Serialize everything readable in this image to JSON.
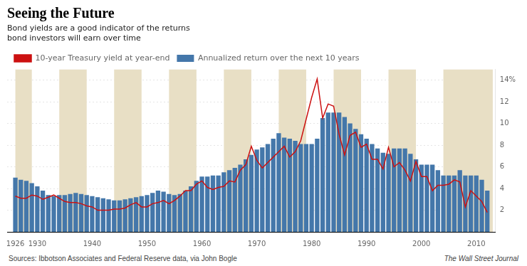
{
  "chart_data": {
    "type": "bar",
    "title": "Seeing the Future",
    "subtitle": "Bond yields are a good indicator of the returns\nbond investors will earn over time",
    "x": [
      1926,
      1927,
      1928,
      1929,
      1930,
      1931,
      1932,
      1933,
      1934,
      1935,
      1936,
      1937,
      1938,
      1939,
      1940,
      1941,
      1942,
      1943,
      1944,
      1945,
      1946,
      1947,
      1948,
      1949,
      1950,
      1951,
      1952,
      1953,
      1954,
      1955,
      1956,
      1957,
      1958,
      1959,
      1960,
      1961,
      1962,
      1963,
      1964,
      1965,
      1966,
      1967,
      1968,
      1969,
      1970,
      1971,
      1972,
      1973,
      1974,
      1975,
      1976,
      1977,
      1978,
      1979,
      1980,
      1981,
      1982,
      1983,
      1984,
      1985,
      1986,
      1987,
      1988,
      1989,
      1990,
      1991,
      1992,
      1993,
      1994,
      1995,
      1996,
      1997,
      1998,
      1999,
      2000,
      2001,
      2002,
      2003,
      2004,
      2005,
      2006,
      2007,
      2008,
      2009,
      2010,
      2011,
      2012
    ],
    "series": [
      {
        "name": "10-year Treasury yield at year-end",
        "type": "line",
        "color": "#cc1111",
        "values": [
          3.3,
          3.1,
          3.1,
          3.4,
          3.3,
          3.0,
          3.2,
          3.4,
          3.1,
          2.8,
          2.7,
          2.7,
          2.6,
          2.4,
          2.3,
          2.0,
          2.0,
          2.0,
          2.1,
          2.1,
          2.2,
          2.5,
          2.7,
          2.3,
          2.3,
          2.6,
          2.7,
          2.9,
          2.6,
          2.9,
          3.3,
          3.8,
          3.8,
          4.4,
          4.7,
          4.1,
          3.9,
          4.1,
          4.2,
          4.7,
          4.6,
          5.7,
          6.2,
          7.9,
          6.6,
          5.9,
          6.4,
          6.9,
          7.4,
          7.9,
          6.9,
          7.4,
          8.4,
          10.4,
          12.4,
          14.1,
          10.5,
          11.8,
          11.6,
          9.0,
          7.1,
          8.9,
          9.2,
          7.8,
          8.1,
          6.7,
          6.7,
          5.8,
          7.8,
          6.0,
          6.4,
          5.7,
          4.7,
          6.5,
          5.1,
          5.1,
          3.8,
          4.3,
          4.3,
          4.4,
          4.8,
          4.6,
          2.3,
          3.8,
          3.3,
          2.8,
          1.8
        ]
      },
      {
        "name": "Annualized return over the next 10 years",
        "type": "bar",
        "color": "#4477aa",
        "values": [
          5.0,
          4.8,
          4.7,
          4.5,
          4.2,
          3.8,
          3.4,
          3.3,
          3.4,
          3.4,
          3.5,
          3.6,
          3.5,
          3.4,
          3.3,
          3.2,
          3.1,
          3.0,
          2.9,
          2.9,
          3.0,
          3.1,
          3.2,
          3.3,
          3.4,
          3.6,
          3.8,
          3.7,
          3.5,
          3.4,
          3.5,
          3.8,
          4.2,
          4.7,
          5.1,
          5.1,
          5.2,
          5.2,
          5.5,
          5.7,
          5.9,
          6.2,
          6.7,
          7.1,
          7.6,
          7.8,
          8.1,
          8.6,
          9.1,
          8.7,
          8.6,
          8.4,
          8.1,
          8.1,
          8.1,
          8.6,
          10.5,
          11.0,
          11.0,
          11.0,
          10.6,
          10.0,
          9.5,
          9.0,
          8.6,
          8.1,
          7.7,
          7.3,
          7.2,
          7.7,
          7.7,
          7.7,
          7.2,
          6.7,
          6.2,
          6.2,
          6.2,
          5.7,
          5.2,
          5.2,
          5.2,
          5.7,
          5.2,
          5.2,
          5.2,
          4.8,
          3.8
        ]
      }
    ],
    "xlim": [
      1924.5,
      2013.5
    ],
    "xticks": [
      1926,
      1930,
      1940,
      1950,
      1960,
      1970,
      1980,
      1990,
      2000,
      2010
    ],
    "ylim": [
      0,
      15
    ],
    "yticks": [
      2,
      4,
      6,
      8,
      10,
      12,
      {
        "value": 14,
        "label": "14%"
      }
    ],
    "grid": "y",
    "bands": {
      "color": "#e8dfc5",
      "ranges": [
        [
          1926,
          1929
        ],
        [
          1934,
          1939
        ],
        [
          1944,
          1949
        ],
        [
          1954,
          1959
        ],
        [
          1964,
          1969
        ],
        [
          1974,
          1979
        ],
        [
          1984,
          1989
        ],
        [
          1994,
          1999
        ],
        [
          2004,
          2013
        ]
      ]
    },
    "source": "Sources: Ibbotson Associates and Federal Reserve data, via John Bogle",
    "credit": "The Wall Street Journal"
  }
}
